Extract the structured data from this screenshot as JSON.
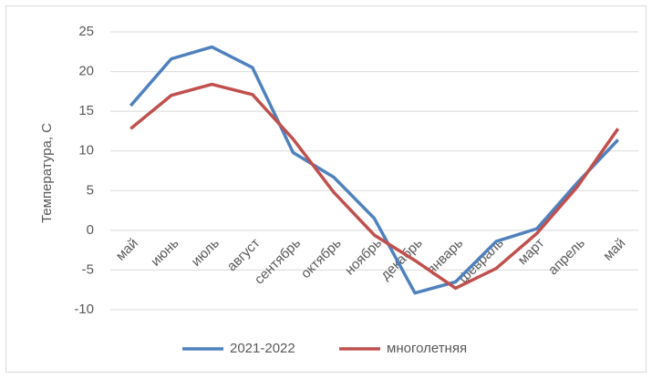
{
  "chart_data": {
    "type": "line",
    "y_label": "Температура, С",
    "categories": [
      "май",
      "июнь",
      "июль",
      "август",
      "сентябрь",
      "октябрь",
      "ноябрь",
      "декабрь",
      "январь",
      "февраль",
      "март",
      "апрель",
      "май"
    ],
    "series": [
      {
        "name": "2021-2022",
        "color": "#4f81bd",
        "values": [
          15.7,
          21.6,
          23.1,
          20.5,
          9.8,
          6.7,
          1.5,
          -7.9,
          -6.5,
          -1.4,
          0.2,
          6.0,
          11.4
        ]
      },
      {
        "name": "многолетняя",
        "color": "#c0504d",
        "values": [
          12.8,
          17.0,
          18.4,
          17.1,
          11.5,
          4.8,
          -0.6,
          -3.8,
          -7.3,
          -4.8,
          -0.4,
          5.5,
          12.8
        ]
      }
    ],
    "ylim": [
      -10,
      25
    ],
    "yticks": [
      -10,
      -5,
      0,
      5,
      10,
      15,
      20,
      25
    ],
    "grid": true,
    "legend": "bottom"
  }
}
